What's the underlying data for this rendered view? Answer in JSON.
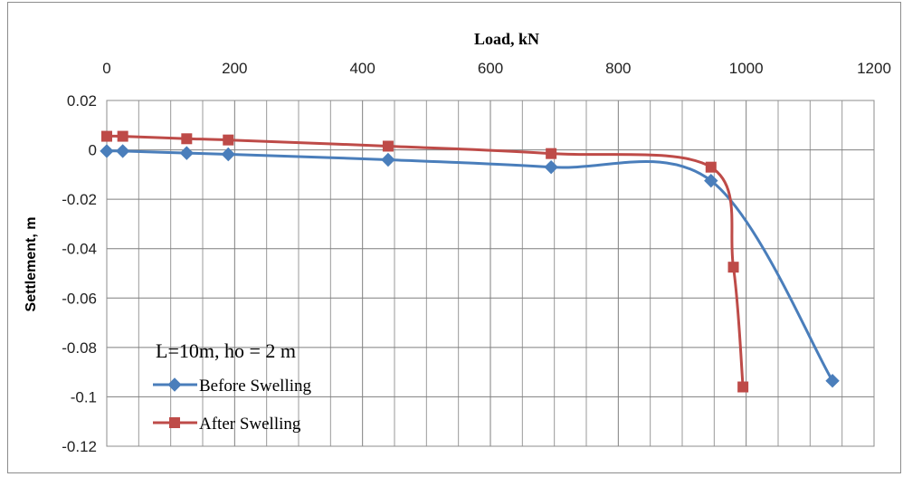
{
  "chart_data": {
    "type": "line",
    "title": "",
    "xlabel": "Load, kN",
    "ylabel": "Settlement, m",
    "x_axis_position": "top",
    "xlim": [
      0,
      1200
    ],
    "ylim": [
      -0.12,
      0.02
    ],
    "x_major_ticks": [
      0,
      200,
      400,
      600,
      800,
      1000,
      1200
    ],
    "x_tick_labels": [
      "0",
      "200",
      "400",
      "600",
      "800",
      "1000",
      "1200"
    ],
    "y_major_ticks": [
      0.02,
      0,
      -0.02,
      -0.04,
      -0.06,
      -0.08,
      -0.1,
      -0.12
    ],
    "y_tick_labels": [
      "0.02",
      "0",
      "-0.02",
      "-0.04",
      "-0.06",
      "-0.08",
      "-0.1",
      "-0.12"
    ],
    "grid": true,
    "smooth_lines": true,
    "legend": {
      "title": "L=10m, ho = 2 m",
      "position": "bottom-left"
    },
    "series": [
      {
        "name": "Before Swelling",
        "color": "#4a7ebb",
        "marker": "diamond",
        "x": [
          0,
          25,
          125,
          190,
          440,
          695,
          945,
          1135
        ],
        "y": [
          -0.0005,
          -0.0005,
          -0.0013,
          -0.0018,
          -0.004,
          -0.007,
          -0.0125,
          -0.0935
        ]
      },
      {
        "name": "After Swelling",
        "color": "#be4b48",
        "marker": "square",
        "x": [
          0,
          25,
          125,
          190,
          440,
          695,
          945,
          980,
          995
        ],
        "y": [
          0.0055,
          0.0055,
          0.0045,
          0.004,
          0.0015,
          -0.0015,
          -0.007,
          -0.0475,
          -0.096
        ]
      }
    ]
  }
}
